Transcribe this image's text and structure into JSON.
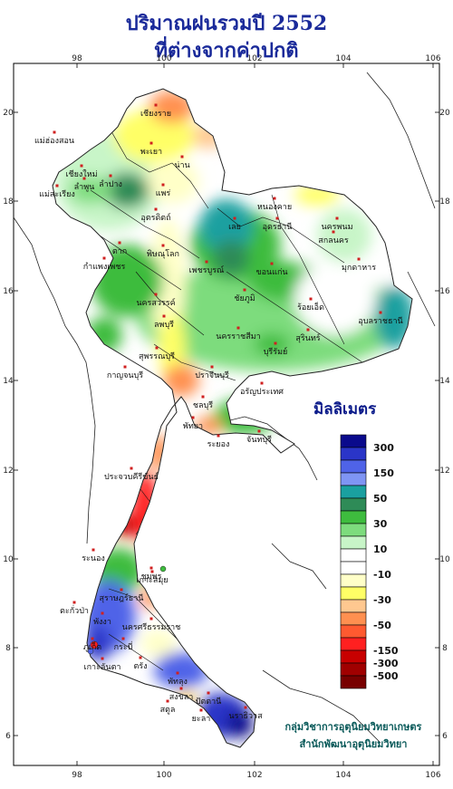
{
  "title": {
    "line1": "ปริมาณฝนรวมปี  2552",
    "line2": "ที่ต่างจากค่าปกติ"
  },
  "axes": {
    "lon_ticks": [
      "98",
      "100",
      "102",
      "104",
      "106"
    ],
    "lat_ticks": [
      "20",
      "18",
      "16",
      "14",
      "12",
      "10",
      "8",
      "6"
    ]
  },
  "legend": {
    "unit": "มิลลิเมตร",
    "labels": [
      "300",
      "150",
      "50",
      "30",
      "10",
      "-10",
      "-30",
      "-50",
      "-150",
      "-300",
      "-500"
    ],
    "colors": [
      "#0a0a8c",
      "#2a35c8",
      "#4f63e8",
      "#7f95f4",
      "#1aa0a0",
      "#2e8b57",
      "#3ebc3e",
      "#7ddc7d",
      "#c8f5c8",
      "#ffffff",
      "#ffffff",
      "#ffffc8",
      "#ffff66",
      "#ffc890",
      "#ff9050",
      "#ff5a30",
      "#ff2020",
      "#c80000",
      "#a00000",
      "#780000"
    ]
  },
  "cities": [
    {
      "name": "เชียงราย"
    },
    {
      "name": "แม่ฮ่องสอน"
    },
    {
      "name": "เชียงใหม่"
    },
    {
      "name": "พะเยา"
    },
    {
      "name": "ลำพูน"
    },
    {
      "name": "ลำปาง"
    },
    {
      "name": "น่าน"
    },
    {
      "name": "แพร่"
    },
    {
      "name": "แม่สะเรียง"
    },
    {
      "name": "อุตรดิตถ์"
    },
    {
      "name": "ตาก"
    },
    {
      "name": "พิษณุโลก"
    },
    {
      "name": "กำแพงเพชร"
    },
    {
      "name": "เลย"
    },
    {
      "name": "เพชรบูรณ์"
    },
    {
      "name": "นครสวรรค์"
    },
    {
      "name": "ชัยภูมิ"
    },
    {
      "name": "ขอนแก่น"
    },
    {
      "name": "หนองคาย"
    },
    {
      "name": "อุดรธานี"
    },
    {
      "name": "สกลนคร"
    },
    {
      "name": "นครพนม"
    },
    {
      "name": "มุกดาหาร"
    },
    {
      "name": "ร้อยเอ็ด"
    },
    {
      "name": "อุบลราชธานี"
    },
    {
      "name": "ลพบุรี"
    },
    {
      "name": "นครราชสีมา"
    },
    {
      "name": "สุรินทร์"
    },
    {
      "name": "บุรีรัมย์"
    },
    {
      "name": "สุพรรณบุรี"
    },
    {
      "name": "กาญจนบุรี"
    },
    {
      "name": "ปราจีนบุรี"
    },
    {
      "name": "อรัญประเทศ"
    },
    {
      "name": "ชลบุรี"
    },
    {
      "name": "พัทยา"
    },
    {
      "name": "ระยอง"
    },
    {
      "name": "จันทบุรี"
    },
    {
      "name": "ประจวบคีรีขันธ์"
    },
    {
      "name": "ระนอง"
    },
    {
      "name": "ชุมพร"
    },
    {
      "name": "เกาะสมุย"
    },
    {
      "name": "สุราษฎร์ธานี"
    },
    {
      "name": "ตะกั่วป่า"
    },
    {
      "name": "พังงา"
    },
    {
      "name": "นครศรีธรรมราช"
    },
    {
      "name": "ภูเก็ต"
    },
    {
      "name": "กระบี่"
    },
    {
      "name": "เกาะลันตา"
    },
    {
      "name": "ตรัง"
    },
    {
      "name": "พัทลุง"
    },
    {
      "name": "สงขลา"
    },
    {
      "name": "ปัตตานี"
    },
    {
      "name": "สตูล"
    },
    {
      "name": "ยะลา"
    },
    {
      "name": "นราธิวาส"
    }
  ],
  "credit": {
    "line1": "กลุ่มวิชาการอุตุนิยมวิทยาเกษตร",
    "line2": "สำนักพัฒนาอุตุนิยมวิทยา"
  }
}
